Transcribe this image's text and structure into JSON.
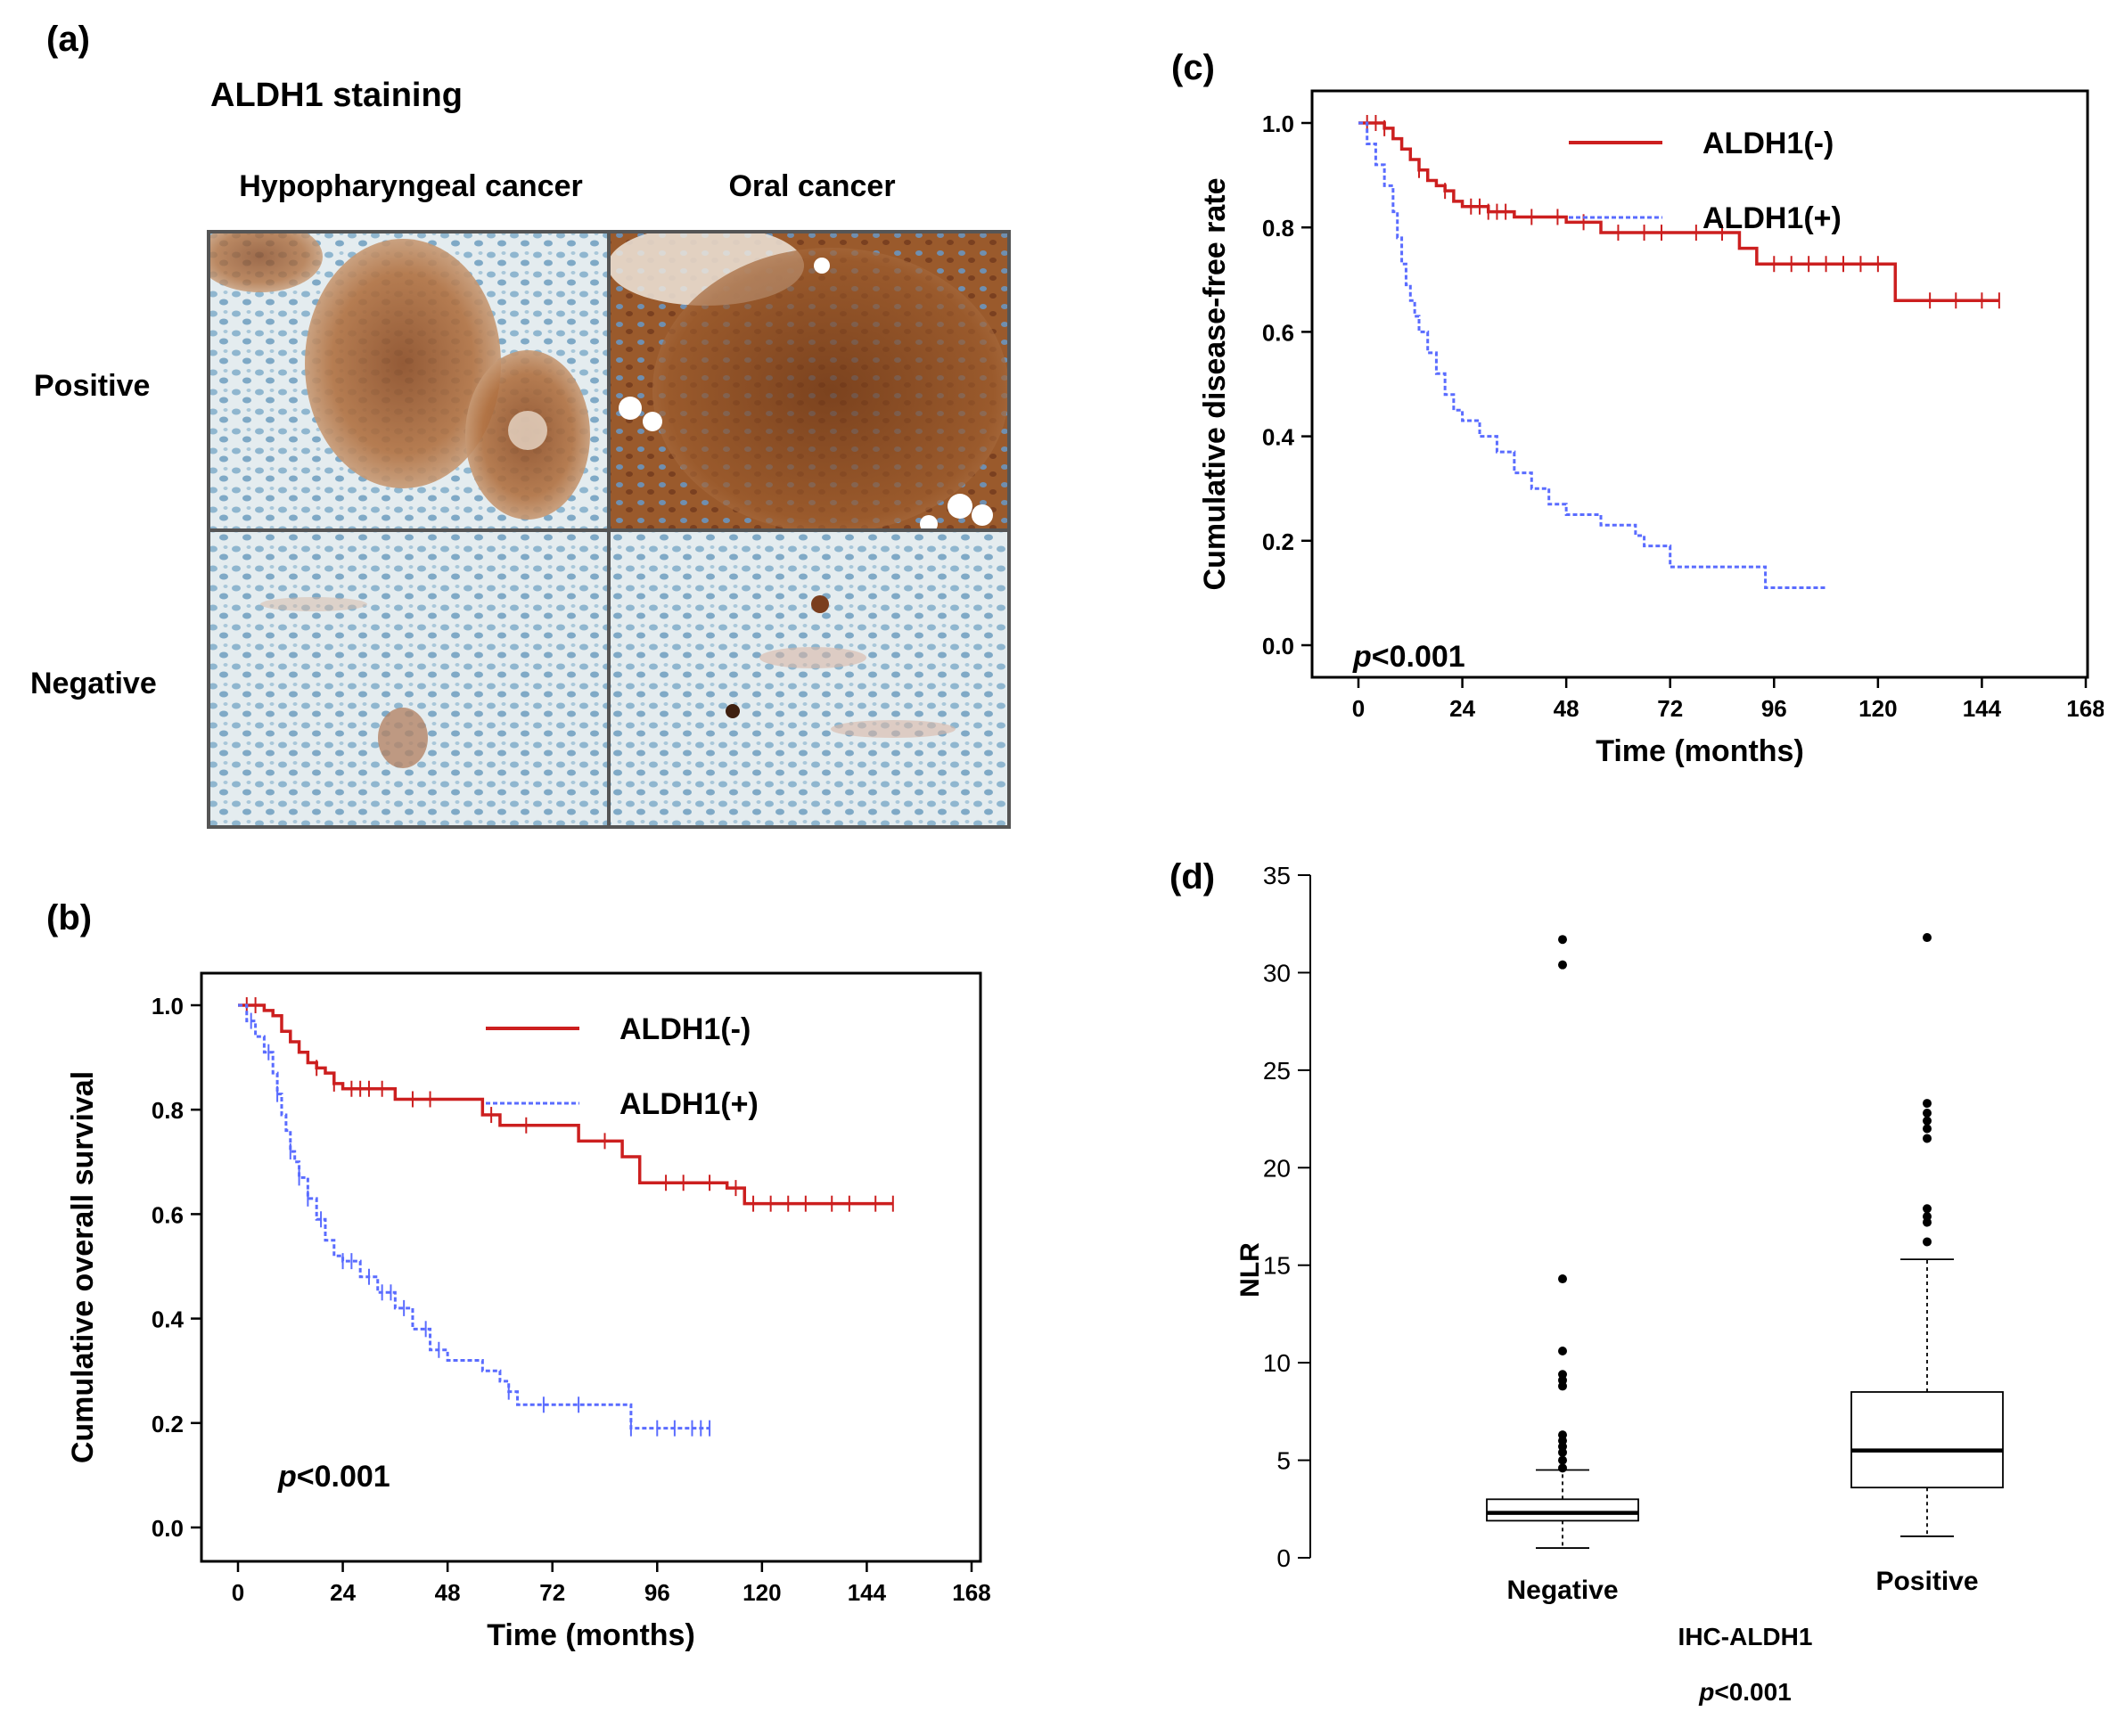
{
  "panel_a": {
    "label": "(a)",
    "title": "ALDH1 staining",
    "col_headers": [
      "Hypopharyngeal cancer",
      "Oral  cancer"
    ],
    "row_headers": [
      "Positive",
      "Negative"
    ],
    "colors": {
      "stain_brown": "#9a5a2c",
      "stain_blue": "#9fc3d8",
      "frame": "#555555"
    }
  },
  "chart_data": [
    {
      "id": "b",
      "panel_label": "(b)",
      "type": "line",
      "subtype": "kaplan-meier",
      "title": "",
      "xlabel": "Time (months)",
      "ylabel": "Cumulative overall survival",
      "xlim": [
        0,
        168
      ],
      "ylim": [
        0,
        1.0
      ],
      "xticks": [
        0,
        24,
        48,
        72,
        96,
        120,
        144,
        168
      ],
      "yticks": [
        "0.0",
        "0.2",
        "0.4",
        "0.6",
        "0.8",
        "1.0"
      ],
      "pvalue": "<0.001",
      "pvalue_p": "p",
      "series": [
        {
          "name": "ALDH1(-)",
          "color": "#cc1f1f",
          "dash": false,
          "x": [
            0,
            5,
            6,
            8,
            10,
            12,
            14,
            16,
            18,
            20,
            22,
            24,
            30,
            36,
            48,
            56,
            60,
            64,
            72,
            78,
            88,
            92,
            104,
            112,
            116,
            150
          ],
          "y": [
            1.0,
            1.0,
            0.99,
            0.98,
            0.95,
            0.93,
            0.91,
            0.89,
            0.88,
            0.87,
            0.85,
            0.84,
            0.84,
            0.82,
            0.82,
            0.79,
            0.77,
            0.77,
            0.77,
            0.74,
            0.71,
            0.66,
            0.66,
            0.65,
            0.62,
            0.62
          ],
          "censors": [
            2,
            4,
            18,
            22,
            26,
            28,
            30,
            33,
            40,
            44,
            58,
            66,
            84,
            98,
            102,
            108,
            114,
            118,
            122,
            126,
            130,
            136,
            140,
            146,
            150
          ]
        },
        {
          "name": "ALDH1(+)",
          "color": "#5a6cff",
          "dash": true,
          "x": [
            0,
            2,
            4,
            6,
            8,
            9,
            10,
            11,
            12,
            13,
            14,
            16,
            18,
            20,
            22,
            24,
            28,
            32,
            36,
            40,
            44,
            48,
            56,
            60,
            62,
            64,
            72,
            80,
            88,
            90,
            108
          ],
          "y": [
            1.0,
            0.97,
            0.94,
            0.91,
            0.87,
            0.83,
            0.79,
            0.76,
            0.72,
            0.7,
            0.67,
            0.63,
            0.59,
            0.55,
            0.52,
            0.51,
            0.48,
            0.45,
            0.42,
            0.38,
            0.34,
            0.32,
            0.3,
            0.28,
            0.26,
            0.235,
            0.235,
            0.235,
            0.235,
            0.19,
            0.19
          ],
          "censors": [
            3,
            7,
            9,
            12,
            14,
            16,
            19,
            24,
            26,
            30,
            33,
            35,
            38,
            43,
            46,
            62,
            70,
            78,
            90,
            96,
            100,
            104,
            106,
            108
          ]
        }
      ]
    },
    {
      "id": "c",
      "panel_label": "(c)",
      "type": "line",
      "subtype": "kaplan-meier",
      "title": "",
      "xlabel": "Time (months)",
      "ylabel": "Cumulative disease-free rate",
      "xlim": [
        0,
        168
      ],
      "ylim": [
        0,
        1.0
      ],
      "xticks": [
        0,
        24,
        48,
        72,
        96,
        120,
        144,
        168
      ],
      "yticks": [
        "0.0",
        "0.2",
        "0.4",
        "0.6",
        "0.8",
        "1.0"
      ],
      "pvalue": "<0.001",
      "pvalue_p": "p",
      "series": [
        {
          "name": "ALDH1(-)",
          "color": "#cc1f1f",
          "dash": false,
          "x": [
            0,
            4,
            6,
            8,
            10,
            12,
            14,
            16,
            18,
            20,
            22,
            24,
            30,
            36,
            48,
            56,
            64,
            72,
            80,
            88,
            92,
            100,
            112,
            124,
            130,
            148
          ],
          "y": [
            1.0,
            1.0,
            0.99,
            0.97,
            0.95,
            0.93,
            0.91,
            0.89,
            0.88,
            0.87,
            0.85,
            0.84,
            0.83,
            0.82,
            0.81,
            0.79,
            0.79,
            0.79,
            0.79,
            0.76,
            0.73,
            0.73,
            0.73,
            0.66,
            0.66,
            0.66
          ],
          "censors": [
            2,
            4,
            6,
            14,
            20,
            26,
            28,
            30,
            32,
            34,
            40,
            46,
            52,
            60,
            66,
            70,
            78,
            84,
            96,
            100,
            104,
            108,
            112,
            116,
            120,
            132,
            138,
            144,
            148
          ]
        },
        {
          "name": "ALDH1(+)",
          "color": "#5a6cff",
          "dash": true,
          "x": [
            0,
            2,
            4,
            6,
            8,
            9,
            10,
            11,
            12,
            13,
            14,
            16,
            18,
            20,
            22,
            24,
            28,
            32,
            36,
            40,
            44,
            48,
            56,
            62,
            64,
            66,
            72,
            80,
            90,
            94,
            108
          ],
          "y": [
            1.0,
            0.96,
            0.92,
            0.88,
            0.83,
            0.78,
            0.73,
            0.69,
            0.66,
            0.63,
            0.6,
            0.56,
            0.52,
            0.48,
            0.45,
            0.43,
            0.4,
            0.37,
            0.33,
            0.3,
            0.27,
            0.25,
            0.23,
            0.23,
            0.21,
            0.19,
            0.15,
            0.15,
            0.15,
            0.11,
            0.11
          ]
        }
      ]
    },
    {
      "id": "d",
      "panel_label": "(d)",
      "type": "box",
      "xlabel": "IHC-ALDH1",
      "ylabel": "NLR",
      "ylim": [
        0,
        35
      ],
      "yticks": [
        0,
        5,
        10,
        15,
        20,
        25,
        30,
        35
      ],
      "pvalue": "<0.001",
      "pvalue_p": "p",
      "categories": [
        "Negative",
        "Positive"
      ],
      "boxes": [
        {
          "name": "Negative",
          "min": 0.5,
          "q1": 1.9,
          "median": 2.3,
          "q3": 3.0,
          "max": 4.5,
          "outliers": [
            4.6,
            5.0,
            5.4,
            5.7,
            6.0,
            6.3,
            8.8,
            9.1,
            9.4,
            10.6,
            14.3,
            30.4,
            31.7
          ]
        },
        {
          "name": "Positive",
          "min": 1.1,
          "q1": 3.6,
          "median": 5.5,
          "q3": 8.5,
          "max": 15.3,
          "outliers": [
            16.2,
            17.2,
            17.5,
            17.9,
            21.5,
            22.0,
            22.4,
            22.8,
            23.3,
            31.8
          ]
        }
      ]
    }
  ]
}
